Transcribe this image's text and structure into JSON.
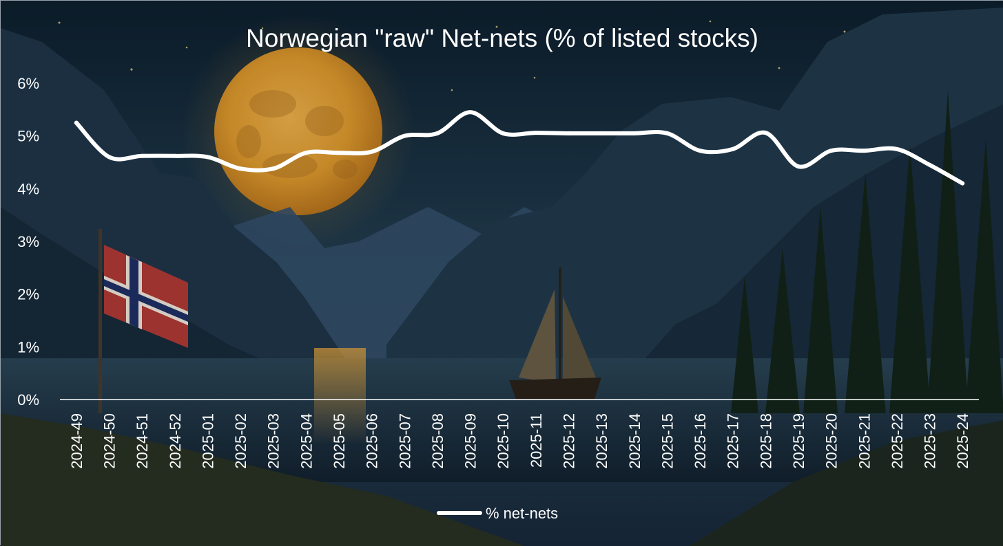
{
  "chart_data": {
    "type": "line",
    "title": "Norwegian \"raw\" Net-nets (% of listed stocks)",
    "xlabel": "",
    "ylabel": "",
    "categories": [
      "2024-49",
      "2024-50",
      "2024-51",
      "2024-52",
      "2025-01",
      "2025-02",
      "2025-03",
      "2025-04",
      "2025-05",
      "2025-06",
      "2025-07",
      "2025-08",
      "2025-09",
      "2025-10",
      "2025-11",
      "2025-12",
      "2025-13",
      "2025-14",
      "2025-15",
      "2025-16",
      "2025-17",
      "2025-18",
      "2025-19",
      "2025-20",
      "2025-21",
      "2025-22",
      "2025-23",
      "2025-24"
    ],
    "y_ticks": [
      "0%",
      "1%",
      "2%",
      "3%",
      "4%",
      "5%",
      "6%"
    ],
    "ylim": [
      0,
      6
    ],
    "grid": false,
    "legend_position": "bottom",
    "series": [
      {
        "name": "% net-nets",
        "color": "#ffffff",
        "values": [
          5.25,
          4.6,
          4.62,
          4.62,
          4.6,
          4.38,
          4.38,
          4.68,
          4.68,
          4.7,
          5.0,
          5.05,
          5.45,
          5.05,
          5.06,
          5.05,
          5.05,
          5.05,
          5.05,
          4.72,
          4.75,
          5.06,
          4.42,
          4.72,
          4.72,
          4.75,
          4.45,
          4.1
        ]
      }
    ]
  },
  "colors": {
    "sky_top": "#0f2233",
    "sky_mid": "#1f3a4c",
    "moon": "#e6a230",
    "mountain": "#1d3244",
    "water": "#23384a",
    "line": "#ffffff",
    "flag_red": "#b23a34",
    "flag_blue": "#1e2f66"
  },
  "background_scene": {
    "elements": [
      "moon",
      "fjord-mountains",
      "norwegian-flag",
      "sailboat",
      "pine-trees",
      "water"
    ]
  }
}
